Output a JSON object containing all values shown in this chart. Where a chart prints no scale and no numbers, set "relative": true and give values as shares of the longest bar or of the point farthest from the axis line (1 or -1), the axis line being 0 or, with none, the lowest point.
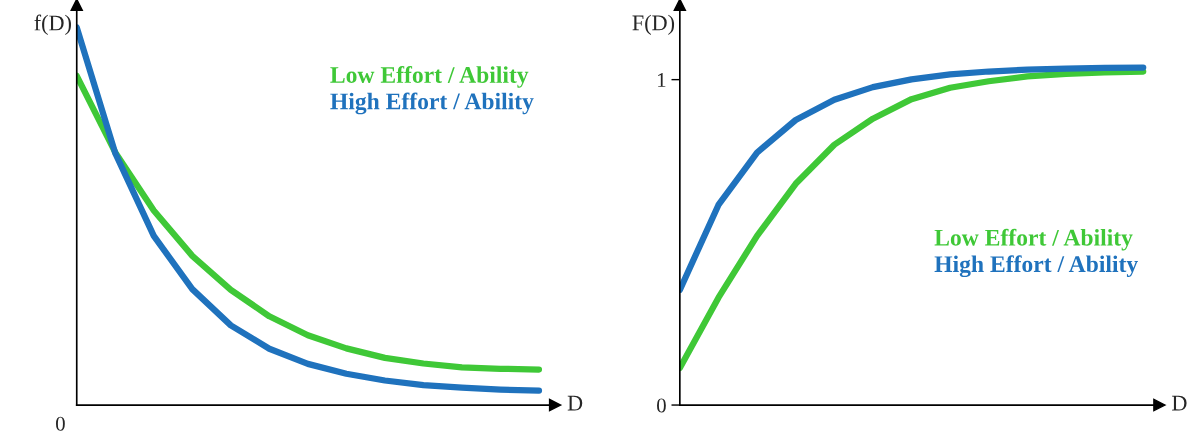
{
  "chart_data": [
    {
      "type": "line",
      "relative": true,
      "ylabel": "f(D)",
      "xlabel": "D",
      "legend": "top right",
      "annotations": [
        "0"
      ],
      "categories": [
        null,
        null,
        null,
        null,
        null,
        null,
        null,
        null,
        null,
        null,
        null,
        null,
        null
      ],
      "series": [
        {
          "name": "Low Effort / Ability",
          "color": "#3fc837",
          "values": [
            0.872,
            0.669,
            0.515,
            0.395,
            0.305,
            0.235,
            0.185,
            0.15,
            0.125,
            0.11,
            0.1,
            0.096,
            0.094
          ]
        },
        {
          "name": "High Effort / Ability",
          "color": "#1f72bd",
          "values": [
            1,
            0.667,
            0.448,
            0.307,
            0.211,
            0.149,
            0.109,
            0.083,
            0.065,
            0.053,
            0.046,
            0.041,
            0.038
          ]
        }
      ]
    },
    {
      "type": "line",
      "ylabel": "F(D)",
      "xlabel": "D",
      "legend": "right",
      "ylim": [
        0,
        1.23
      ],
      "yticks": [
        0,
        1
      ],
      "categories": [
        null,
        null,
        null,
        null,
        null,
        null,
        null,
        null,
        null,
        null,
        null,
        null,
        null
      ],
      "series": [
        {
          "name": "Low Effort / Ability",
          "color": "#3fc837",
          "values": [
            0.114,
            0.33,
            0.52,
            0.68,
            0.8,
            0.88,
            0.94,
            0.975,
            0.995,
            1.01,
            1.018,
            1.022,
            1.025
          ]
        },
        {
          "name": "High Effort / Ability",
          "color": "#1f72bd",
          "values": [
            0.354,
            0.615,
            0.776,
            0.876,
            0.938,
            0.977,
            1.001,
            1.016,
            1.025,
            1.031,
            1.034,
            1.036,
            1.037
          ]
        }
      ]
    }
  ]
}
